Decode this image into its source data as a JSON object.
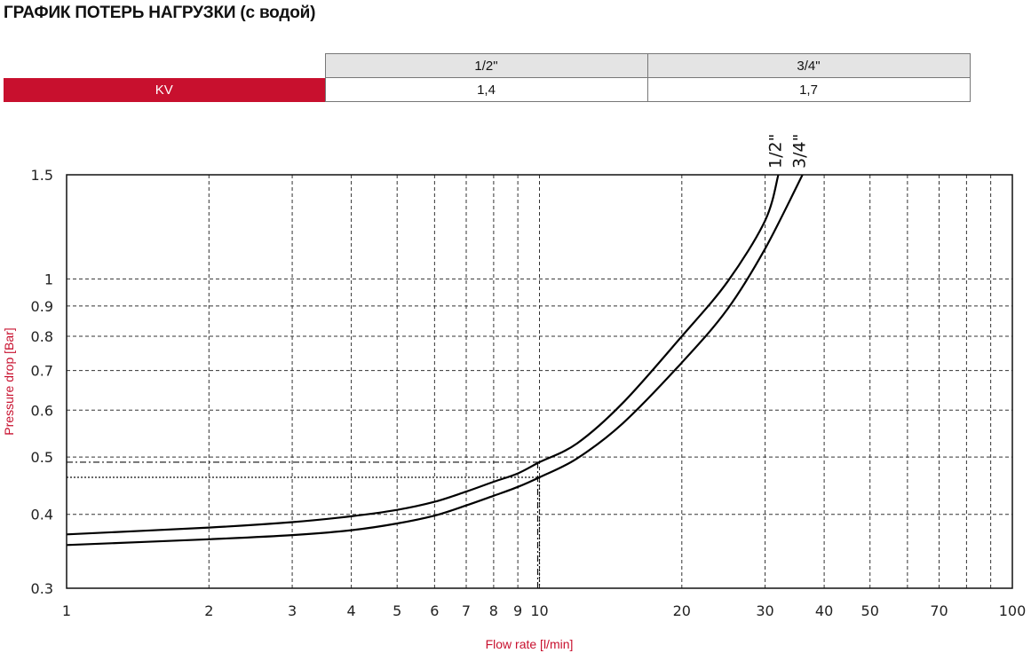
{
  "page": {
    "title": "ГРАФИК ПОТЕРЬ НАГРУЗКИ (с водой)"
  },
  "kv_table": {
    "columns": [
      "1/2\"",
      "3/4\""
    ],
    "row_label": "KV",
    "values": [
      "1,4",
      "1,7"
    ],
    "row_label_bg": "#c8102e",
    "header_bg": "#e4e4e4"
  },
  "colors": {
    "accent": "#c8102e",
    "curve": "#000000",
    "grid": "#333333"
  },
  "chart_data": {
    "type": "line",
    "title": "",
    "xlabel": "Flow rate [l/min]",
    "ylabel": "Pressure drop [Bar]",
    "x_scale": "log",
    "y_scale": "log",
    "xlim": [
      1,
      100
    ],
    "ylim": [
      0.3,
      1.5
    ],
    "x_ticks": [
      1,
      2,
      3,
      4,
      5,
      6,
      7,
      8,
      9,
      10,
      20,
      30,
      40,
      50,
      70,
      100
    ],
    "x_tick_labels": [
      "1",
      "2",
      "3",
      "4",
      "5",
      "6",
      "7",
      "8",
      "9",
      "10",
      "20",
      "30",
      "40",
      "50",
      "70",
      "100"
    ],
    "x_grid": [
      2,
      3,
      4,
      5,
      6,
      7,
      8,
      9,
      10,
      20,
      30,
      40,
      50,
      60,
      70,
      80,
      90
    ],
    "y_ticks": [
      0.3,
      0.4,
      0.5,
      0.6,
      0.7,
      0.8,
      0.9,
      1,
      1.5
    ],
    "y_tick_labels": [
      "0.3",
      "0.4",
      "0.5",
      "0.6",
      "0.7",
      "0.8",
      "0.9",
      "1",
      "1.5"
    ],
    "y_grid": [
      0.4,
      0.5,
      0.6,
      0.7,
      0.8,
      0.9,
      1
    ],
    "grid": "dashed",
    "legend": "none",
    "series": [
      {
        "label": "1/2\"",
        "points": [
          [
            1,
            0.37
          ],
          [
            2,
            0.38
          ],
          [
            3,
            0.388
          ],
          [
            4,
            0.397
          ],
          [
            5,
            0.407
          ],
          [
            6,
            0.42
          ],
          [
            7,
            0.437
          ],
          [
            8,
            0.454
          ],
          [
            9,
            0.469
          ],
          [
            10,
            0.49
          ],
          [
            12,
            0.527
          ],
          [
            15,
            0.617
          ],
          [
            20,
            0.8
          ],
          [
            25,
            0.99
          ],
          [
            30,
            1.255
          ],
          [
            32,
            1.5
          ]
        ]
      },
      {
        "label": "3/4\"",
        "points": [
          [
            1,
            0.355
          ],
          [
            2,
            0.363
          ],
          [
            3,
            0.369
          ],
          [
            4,
            0.376
          ],
          [
            5,
            0.386
          ],
          [
            6,
            0.398
          ],
          [
            7,
            0.414
          ],
          [
            8,
            0.43
          ],
          [
            9,
            0.445
          ],
          [
            10,
            0.462
          ],
          [
            12,
            0.497
          ],
          [
            15,
            0.57
          ],
          [
            20,
            0.722
          ],
          [
            25,
            0.89
          ],
          [
            30,
            1.125
          ],
          [
            36,
            1.5
          ]
        ]
      }
    ],
    "reference_lines": [
      {
        "x": 10,
        "y": 0.49
      },
      {
        "x": 10,
        "y": 0.462
      }
    ]
  }
}
